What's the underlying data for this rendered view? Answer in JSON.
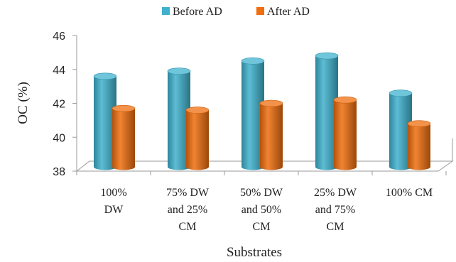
{
  "chart_data": {
    "type": "bar",
    "title": "",
    "xlabel": "Substrates",
    "ylabel": "OC (%)",
    "ylim": [
      38,
      46
    ],
    "yticks": [
      "38",
      "40",
      "42",
      "44",
      "46"
    ],
    "categories": [
      [
        "100%",
        "DW"
      ],
      [
        "75% DW",
        "and 25%",
        "CM"
      ],
      [
        "50% DW",
        "and 50%",
        "CM"
      ],
      [
        "25% DW",
        "and 75%",
        "CM"
      ],
      [
        "100% CM"
      ]
    ],
    "series": [
      {
        "name": "Before AD",
        "color": "#3fb1cd",
        "values": [
          43.6,
          43.9,
          44.5,
          44.8,
          42.6
        ]
      },
      {
        "name": "After AD",
        "color": "#ef6e0e",
        "values": [
          41.7,
          41.6,
          42.0,
          42.2,
          40.8
        ]
      }
    ],
    "grid": false,
    "legend": "top",
    "style": "3d-cylinder"
  }
}
